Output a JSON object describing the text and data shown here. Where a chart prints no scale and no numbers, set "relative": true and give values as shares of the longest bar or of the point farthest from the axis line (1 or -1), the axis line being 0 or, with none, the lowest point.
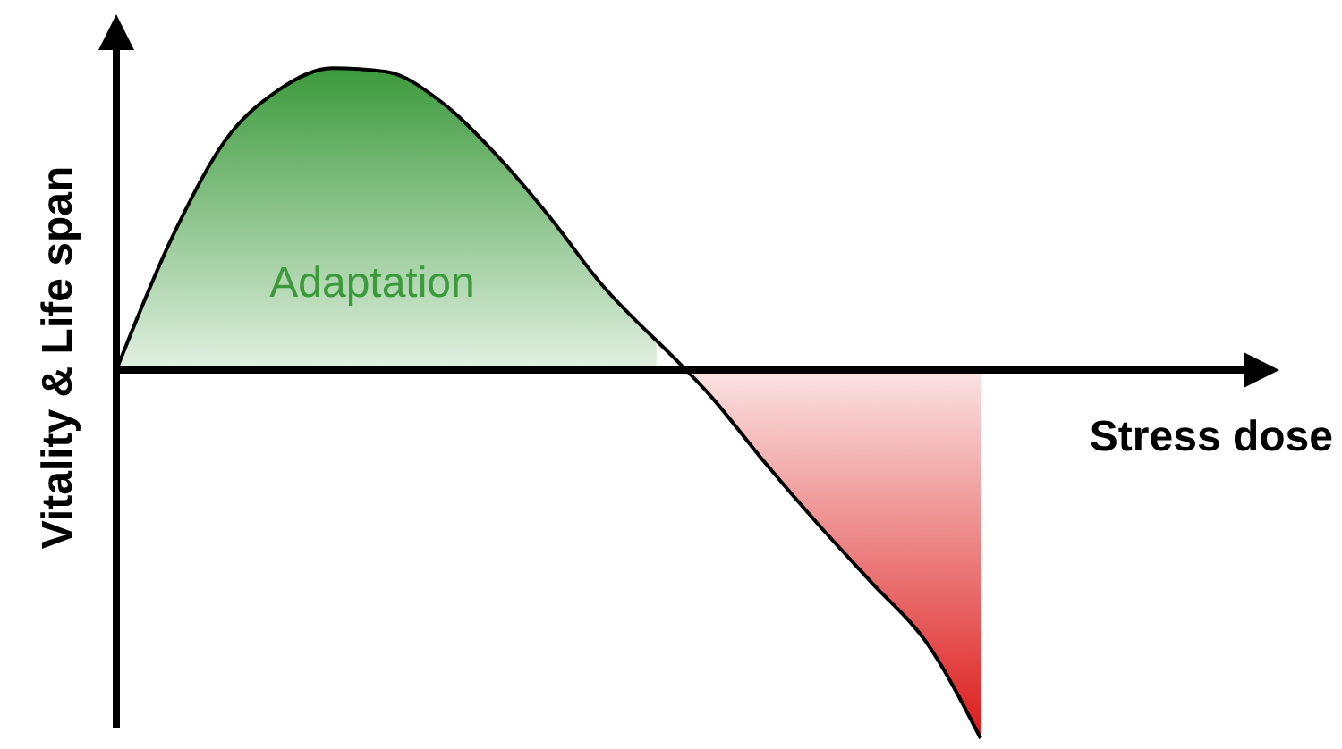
{
  "chart_data": {
    "type": "area",
    "relative": true,
    "xlabel": "Stress dose",
    "ylabel": "Vitality & Life span",
    "annotations": [
      "Adaptation"
    ],
    "categories": [
      null,
      null,
      null,
      null,
      null,
      null,
      null,
      null,
      null,
      null,
      null,
      null,
      null,
      null,
      null,
      null,
      null
    ],
    "series": [
      {
        "color": "#3c9a3c",
        "values": [
          0,
          0.35,
          0.62,
          0.76,
          0.82,
          0.81,
          0.73,
          0.59,
          0.42,
          0.23,
          0.08,
          null,
          null,
          null,
          null,
          null,
          null
        ]
      },
      {
        "color": "#dd1a1a",
        "values": [
          null,
          null,
          null,
          null,
          null,
          null,
          null,
          null,
          null,
          null,
          0.08,
          -0.07,
          -0.25,
          -0.42,
          -0.58,
          -0.74,
          -1
        ]
      }
    ]
  }
}
